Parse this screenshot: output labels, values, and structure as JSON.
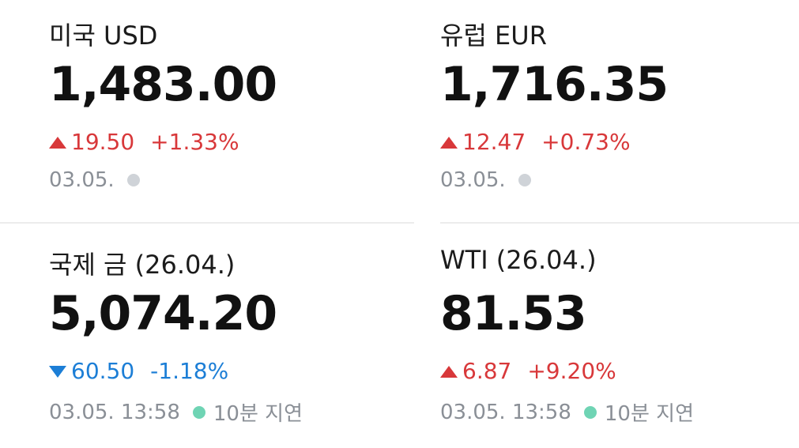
{
  "quotes": [
    {
      "name": "미국 USD",
      "price": "1,483.00",
      "change": "19.50",
      "change_pct": "+1.33%",
      "direction": "up",
      "date": "03.05.",
      "status_color": "#cfd3d8"
    },
    {
      "name": "유럽 EUR",
      "price": "1,716.35",
      "change": "12.47",
      "change_pct": "+0.73%",
      "direction": "up",
      "date": "03.05.",
      "status_color": "#cfd3d8"
    },
    {
      "name": "국제 금 (26.04.)",
      "price": "5,074.20",
      "change": "60.50",
      "change_pct": "-1.18%",
      "direction": "down",
      "date": "03.05. 13:58",
      "status_color": "#6fd4b4",
      "delay": "10분 지연"
    },
    {
      "name": "WTI (26.04.)",
      "price": "81.53",
      "change": "6.87",
      "change_pct": "+9.20%",
      "direction": "up",
      "date": "03.05. 13:58",
      "status_color": "#6fd4b4",
      "delay": "10분 지연"
    }
  ]
}
